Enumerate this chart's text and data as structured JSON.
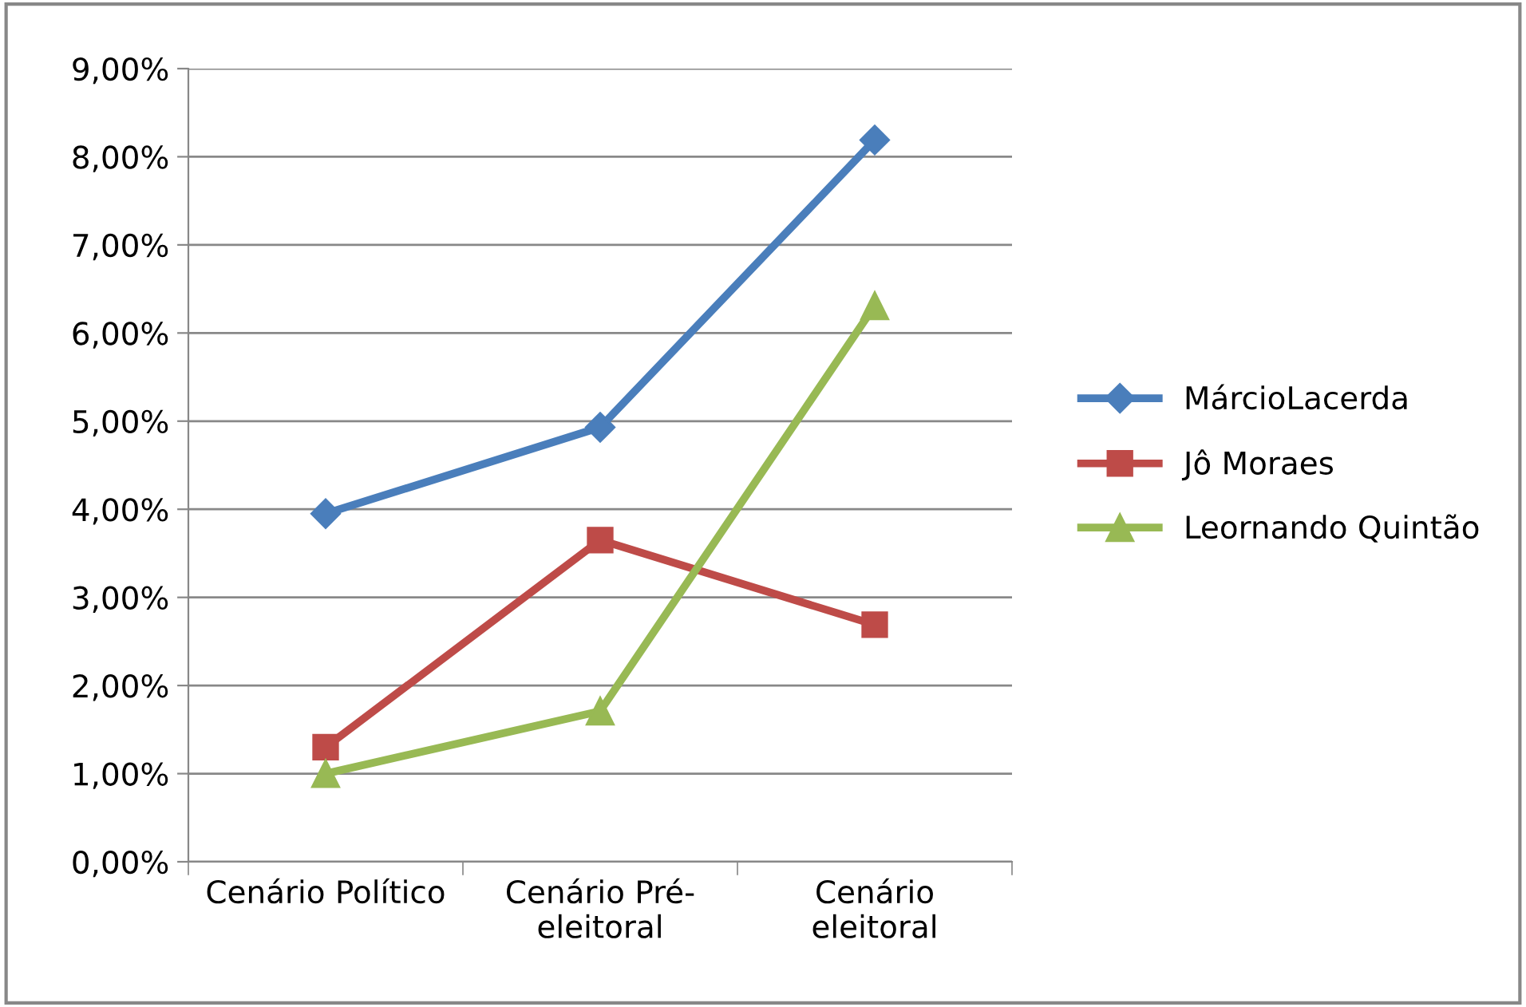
{
  "chart_data": {
    "type": "line",
    "categories": [
      "Cenário Político",
      "Cenário Pré-\neleitoral",
      "Cenário\neleitoral"
    ],
    "series": [
      {
        "name": "MárcioLacerda",
        "color": "#4a7ebb",
        "marker": "diamond",
        "values": [
          3.95,
          4.93,
          8.19
        ]
      },
      {
        "name": "Jô Moraes",
        "color": "#be4b48",
        "marker": "square",
        "values": [
          1.3,
          3.65,
          2.69
        ]
      },
      {
        "name": "Leornando Quintão",
        "color": "#98b954",
        "marker": "triangle",
        "values": [
          1.0,
          1.71,
          6.31
        ]
      }
    ],
    "ylim": [
      0,
      9
    ],
    "yticks": [
      {
        "value": 0,
        "label": "0,00%"
      },
      {
        "value": 1,
        "label": "1,00%"
      },
      {
        "value": 2,
        "label": "2,00%"
      },
      {
        "value": 3,
        "label": "3,00%"
      },
      {
        "value": 4,
        "label": "4,00%"
      },
      {
        "value": 5,
        "label": "5,00%"
      },
      {
        "value": 6,
        "label": "6,00%"
      },
      {
        "value": 7,
        "label": "7,00%"
      },
      {
        "value": 8,
        "label": "8,00%"
      },
      {
        "value": 9,
        "label": "9,00%"
      }
    ],
    "grid": "y",
    "legend": "right"
  }
}
